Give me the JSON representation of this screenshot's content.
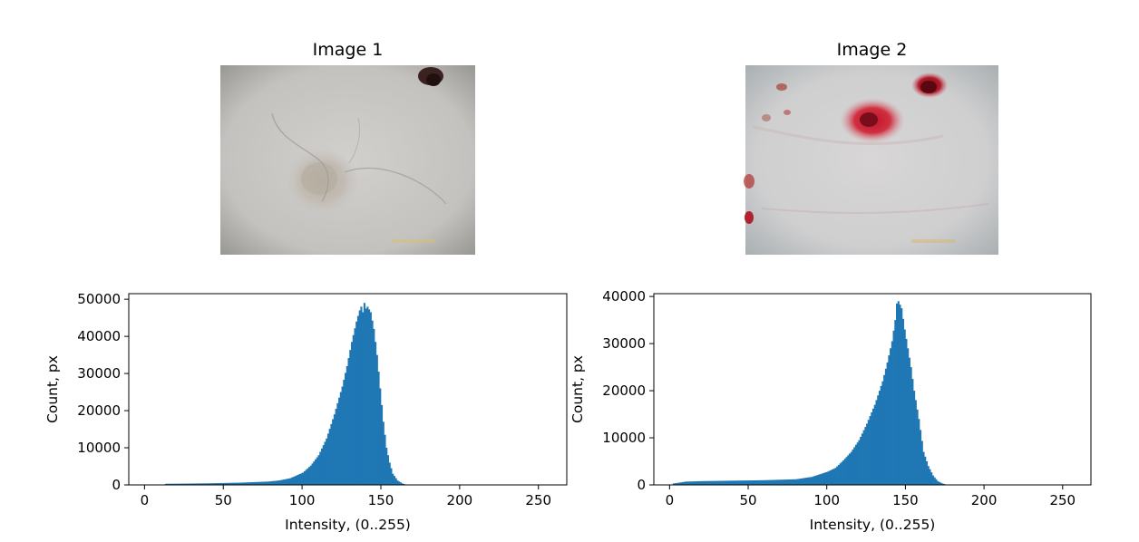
{
  "chart_data": [
    {
      "type": "image",
      "title": "Image 1",
      "description": "dermoscopy photo: pale grey skin with a light lesion and hairs, dark spot at top right"
    },
    {
      "type": "image",
      "title": "Image 2",
      "description": "dermoscopy photo: pale skin with red blood spots"
    },
    {
      "type": "bar",
      "xlabel": "Intensity, (0..255)",
      "ylabel": "Count, px",
      "xlim": [
        -10,
        268
      ],
      "ylim": [
        0,
        51500
      ],
      "xticks": [
        "0",
        "50",
        "100",
        "150",
        "200",
        "250"
      ],
      "yticks": [
        "0",
        "10000",
        "20000",
        "30000",
        "40000",
        "50000"
      ],
      "color": "#1f77b4",
      "profile": [
        [
          12,
          0
        ],
        [
          13,
          300
        ],
        [
          20,
          320
        ],
        [
          40,
          420
        ],
        [
          60,
          600
        ],
        [
          78,
          900
        ],
        [
          85,
          1200
        ],
        [
          92,
          1800
        ],
        [
          100,
          3300
        ],
        [
          105,
          5200
        ],
        [
          110,
          8000
        ],
        [
          115,
          12500
        ],
        [
          120,
          19000
        ],
        [
          125,
          26500
        ],
        [
          128,
          32000
        ],
        [
          131,
          38500
        ],
        [
          134,
          44000
        ],
        [
          136,
          47000
        ],
        [
          137,
          48000
        ],
        [
          138,
          46500
        ],
        [
          139,
          49000
        ],
        [
          140,
          47500
        ],
        [
          141,
          48000
        ],
        [
          143,
          46500
        ],
        [
          145,
          42000
        ],
        [
          147,
          35000
        ],
        [
          149,
          26000
        ],
        [
          151,
          17000
        ],
        [
          153,
          10000
        ],
        [
          155,
          6000
        ],
        [
          157,
          3000
        ],
        [
          160,
          1200
        ],
        [
          163,
          400
        ],
        [
          166,
          0
        ]
      ]
    },
    {
      "type": "bar",
      "xlabel": "Intensity, (0..255)",
      "ylabel": "Count, px",
      "xlim": [
        -10,
        268
      ],
      "ylim": [
        0,
        40600
      ],
      "xticks": [
        "0",
        "50",
        "100",
        "150",
        "200",
        "250"
      ],
      "yticks": [
        "0",
        "10000",
        "20000",
        "30000",
        "40000"
      ],
      "color": "#1f77b4",
      "profile": [
        [
          1,
          0
        ],
        [
          2,
          300
        ],
        [
          10,
          700
        ],
        [
          20,
          800
        ],
        [
          40,
          900
        ],
        [
          60,
          1000
        ],
        [
          80,
          1200
        ],
        [
          90,
          1700
        ],
        [
          100,
          2800
        ],
        [
          105,
          3600
        ],
        [
          110,
          5200
        ],
        [
          115,
          7000
        ],
        [
          120,
          9500
        ],
        [
          125,
          13000
        ],
        [
          130,
          17000
        ],
        [
          135,
          22000
        ],
        [
          138,
          26000
        ],
        [
          141,
          30500
        ],
        [
          143,
          35000
        ],
        [
          144,
          38500
        ],
        [
          145,
          39000
        ],
        [
          147,
          37500
        ],
        [
          149,
          33000
        ],
        [
          151,
          29000
        ],
        [
          153,
          25000
        ],
        [
          155,
          20000
        ],
        [
          158,
          14000
        ],
        [
          161,
          7000
        ],
        [
          164,
          4000
        ],
        [
          167,
          2000
        ],
        [
          170,
          800
        ],
        [
          173,
          300
        ],
        [
          176,
          0
        ]
      ]
    }
  ]
}
